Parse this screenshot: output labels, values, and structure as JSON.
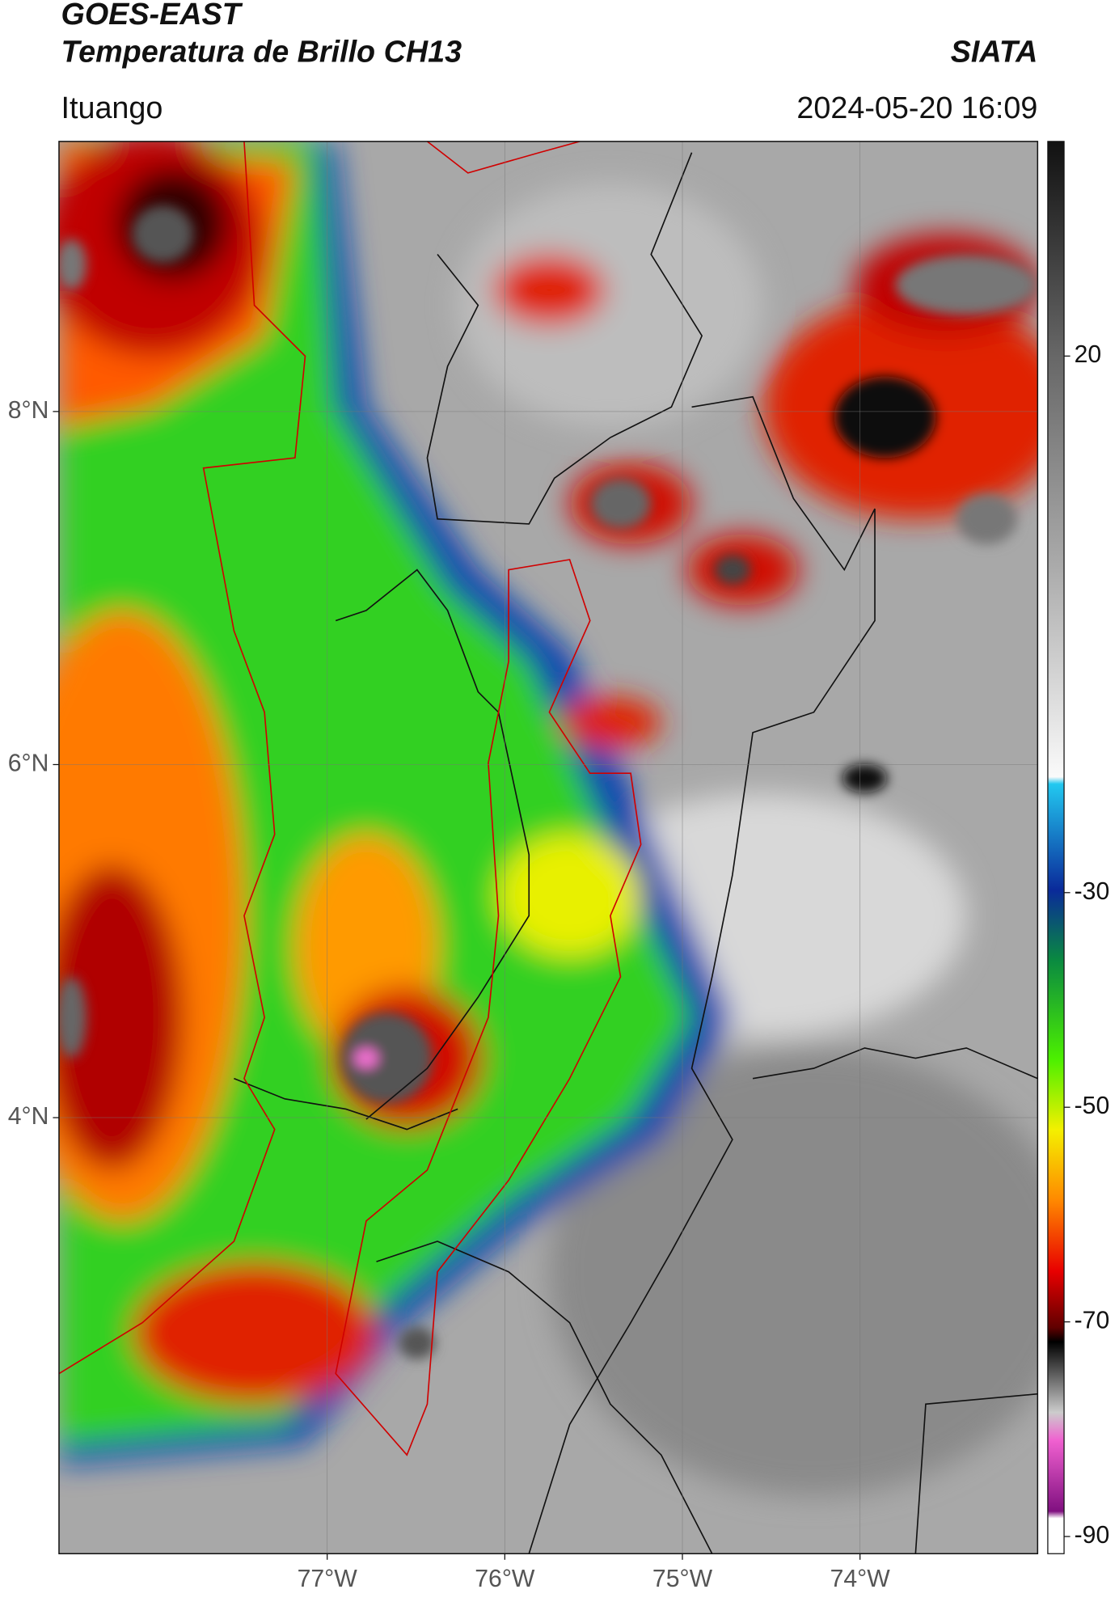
{
  "header": {
    "title": "GOES-EAST",
    "subtitle": "Temperatura de Brillo CH13",
    "source": "SIATA",
    "location": "Ituango",
    "datetime": "2024-05-20 16:09"
  },
  "map": {
    "xlim": [
      -78.51,
      -73.0
    ],
    "ylim": [
      1.53,
      9.53
    ],
    "xticks": [
      {
        "value": -77,
        "label": "77°W"
      },
      {
        "value": -76,
        "label": "76°W"
      },
      {
        "value": -75,
        "label": "75°W"
      },
      {
        "value": -74,
        "label": "74°W"
      }
    ],
    "yticks": [
      {
        "value": 8,
        "label": "8°N"
      },
      {
        "value": 6,
        "label": "6°N"
      },
      {
        "value": 4,
        "label": "4°N"
      }
    ],
    "grid": true
  },
  "colorbar": {
    "lim": [
      -91.6,
      40
    ],
    "ticks": [
      20,
      -30,
      -50,
      -70,
      -90
    ]
  }
}
